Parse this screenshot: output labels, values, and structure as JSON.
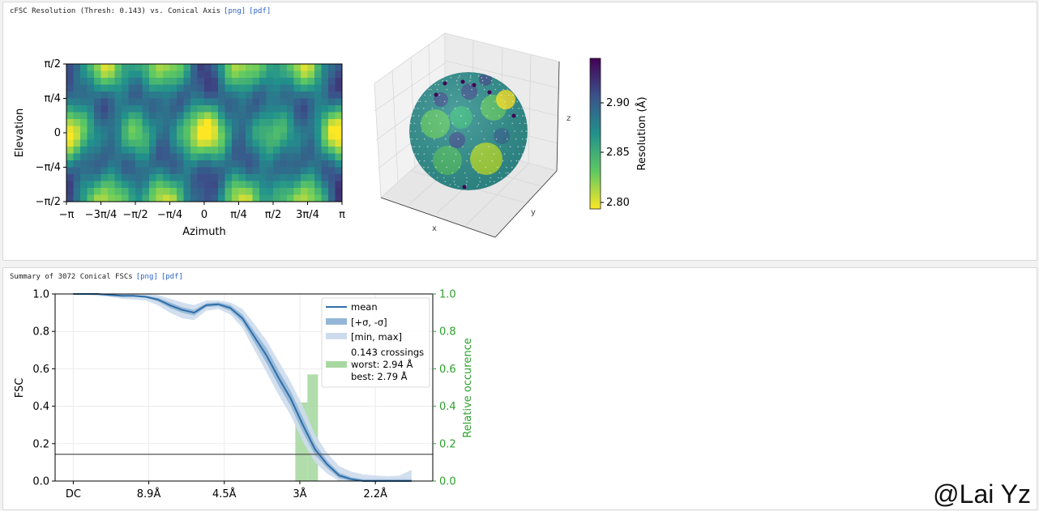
{
  "panel1": {
    "title": "cFSC Resolution (Thresh: 0.143) vs. Conical Axis",
    "links": [
      "[png]",
      "[pdf]"
    ]
  },
  "panel2": {
    "title": "Summary of 3072 Conical FSCs",
    "links": [
      "[png]",
      "[pdf]"
    ]
  },
  "watermark": "@Lai Yz",
  "chart_data": [
    {
      "type": "heatmap",
      "xlabel": "Azimuth",
      "ylabel": "Elevation",
      "xticks": [
        "−π",
        "−3π/4",
        "−π/2",
        "−π/4",
        "0",
        "π/4",
        "π/2",
        "3π/4",
        "π"
      ],
      "yticks": [
        "π/2",
        "π/4",
        "0",
        "−π/4",
        "−π/2"
      ],
      "colormap": "viridis (reversed)"
    },
    {
      "type": "scatter",
      "projection": "3d sphere",
      "axis_labels": [
        "x",
        "y",
        "z"
      ]
    },
    {
      "type": "colorbar",
      "label": "Resolution (Å)",
      "ticks": [
        "2.90",
        "2.85",
        "2.80"
      ],
      "range": [
        2.79,
        2.94
      ]
    },
    {
      "type": "line",
      "xlabel": "",
      "ylabel": "FSC",
      "y2label": "Relative occurence",
      "xticks": [
        "DC",
        "8.9Å",
        "4.5Å",
        "3Å",
        "2.2Å"
      ],
      "xtick_positions": [
        0,
        0.25,
        0.5,
        0.75,
        1.0
      ],
      "x_range": [
        -0.06,
        1.19
      ],
      "ylim": [
        0,
        1
      ],
      "yticks": [
        "0.0",
        "0.2",
        "0.4",
        "0.6",
        "0.8",
        "1.0"
      ],
      "y2ticks": [
        "0.0",
        "0.2",
        "0.4",
        "0.6",
        "0.8",
        "1.0"
      ],
      "threshold": 0.143,
      "x": [
        0.0,
        0.04,
        0.08,
        0.12,
        0.16,
        0.2,
        0.24,
        0.28,
        0.32,
        0.36,
        0.4,
        0.44,
        0.48,
        0.52,
        0.56,
        0.6,
        0.64,
        0.68,
        0.72,
        0.76,
        0.8,
        0.84,
        0.88,
        0.92,
        0.96,
        1.0,
        1.04,
        1.08,
        1.12
      ],
      "series": [
        {
          "name": "mean",
          "values": [
            1.0,
            1.0,
            1.0,
            0.995,
            0.99,
            0.99,
            0.985,
            0.97,
            0.94,
            0.915,
            0.9,
            0.94,
            0.945,
            0.925,
            0.87,
            0.77,
            0.67,
            0.55,
            0.44,
            0.3,
            0.17,
            0.09,
            0.03,
            0.01,
            0.0,
            0.0,
            0.0,
            0.0,
            0.0
          ]
        },
        {
          "name": "[+σ, -σ]",
          "upper": [
            1.0,
            1.0,
            1.0,
            0.998,
            0.995,
            0.995,
            0.99,
            0.98,
            0.955,
            0.93,
            0.915,
            0.95,
            0.955,
            0.94,
            0.89,
            0.8,
            0.71,
            0.59,
            0.48,
            0.34,
            0.2,
            0.11,
            0.045,
            0.02,
            0.01,
            0.01,
            0.01,
            0.01,
            0.01
          ],
          "lower": [
            1.0,
            1.0,
            1.0,
            0.992,
            0.985,
            0.985,
            0.98,
            0.96,
            0.925,
            0.9,
            0.885,
            0.93,
            0.935,
            0.91,
            0.85,
            0.74,
            0.63,
            0.51,
            0.4,
            0.26,
            0.14,
            0.07,
            0.015,
            0.0,
            0.0,
            0.0,
            0.0,
            0.0,
            0.0
          ]
        },
        {
          "name": "[min, max]",
          "upper": [
            1.0,
            1.0,
            1.0,
            1.0,
            1.0,
            1.0,
            1.0,
            0.995,
            0.975,
            0.955,
            0.94,
            0.965,
            0.965,
            0.955,
            0.92,
            0.84,
            0.75,
            0.64,
            0.53,
            0.4,
            0.25,
            0.15,
            0.08,
            0.05,
            0.035,
            0.03,
            0.025,
            0.03,
            0.06
          ],
          "lower": [
            0.995,
            0.995,
            0.99,
            0.985,
            0.975,
            0.97,
            0.965,
            0.94,
            0.9,
            0.87,
            0.86,
            0.91,
            0.92,
            0.89,
            0.82,
            0.7,
            0.58,
            0.46,
            0.35,
            0.21,
            0.1,
            0.04,
            0.0,
            0.0,
            0.0,
            0.0,
            0.0,
            0.0,
            0.0
          ]
        }
      ],
      "histogram": {
        "name": "0.143 crossings",
        "bins": [
          [
            0.735,
            0.775,
            0.42
          ],
          [
            0.775,
            0.81,
            0.57
          ]
        ]
      },
      "legend_lines": [
        "mean",
        "[+σ, -σ]",
        "[min, max]",
        "0.143 crossings",
        "worst: 2.94 Å",
        "best: 2.79 Å"
      ],
      "legend_placement": "upper-right",
      "colors": {
        "line": "#2e6ea8",
        "sigma": "#93b6d6",
        "minmax": "#cddcec",
        "hist": "#a8d8a2",
        "right_axis": "#2ca02c",
        "threshold": "#555555"
      }
    }
  ]
}
